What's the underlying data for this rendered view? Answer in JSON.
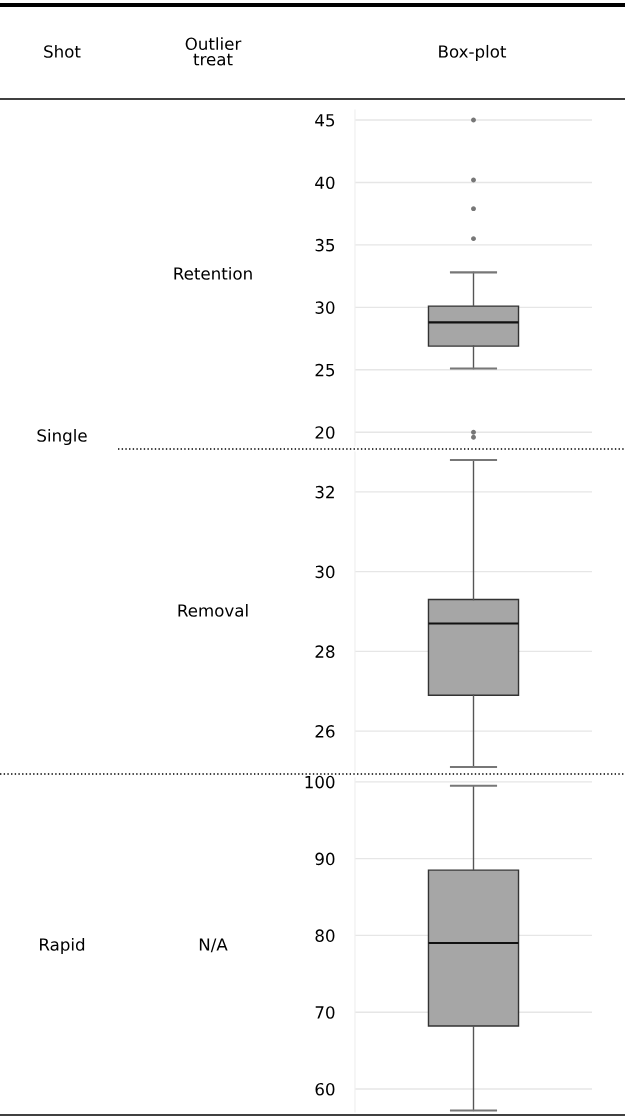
{
  "chart_data": [
    {
      "type": "box",
      "annotations": [
        "Shot",
        "Outlier\ntreat",
        "Box-plot",
        "Single",
        "Retention"
      ],
      "color": "#a6a6a6",
      "categories": [
        null
      ],
      "ylim": [
        18.9,
        45.8
      ],
      "yticks": [
        20,
        25,
        30,
        35,
        40,
        45
      ],
      "grid": "y",
      "boxes": [
        {
          "low": 25.1,
          "q1": 26.9,
          "median": 28.8,
          "q3": 30.1,
          "high": 32.8,
          "outliers": [
            45,
            40.2,
            37.9,
            35.5,
            20.0,
            19.6
          ]
        }
      ]
    },
    {
      "type": "box",
      "annotations": [
        "Removal"
      ],
      "color": "#a6a6a6",
      "categories": [
        null
      ],
      "ylim": [
        25.0,
        33.0
      ],
      "yticks": [
        26,
        28,
        30,
        32
      ],
      "grid": "y",
      "boxes": [
        {
          "low": 25.1,
          "q1": 26.9,
          "median": 28.7,
          "q3": 29.3,
          "high": 32.8
        }
      ]
    },
    {
      "type": "box",
      "annotations": [
        "Rapid",
        "N/A"
      ],
      "color": "#a6a6a6",
      "categories": [
        null
      ],
      "ylim": [
        57.0,
        100.5
      ],
      "yticks": [
        60,
        70,
        80,
        90,
        100
      ],
      "grid": "y",
      "boxes": [
        {
          "low": 57.2,
          "q1": 68.2,
          "median": 79.0,
          "q3": 88.5,
          "high": 99.5
        }
      ]
    }
  ]
}
